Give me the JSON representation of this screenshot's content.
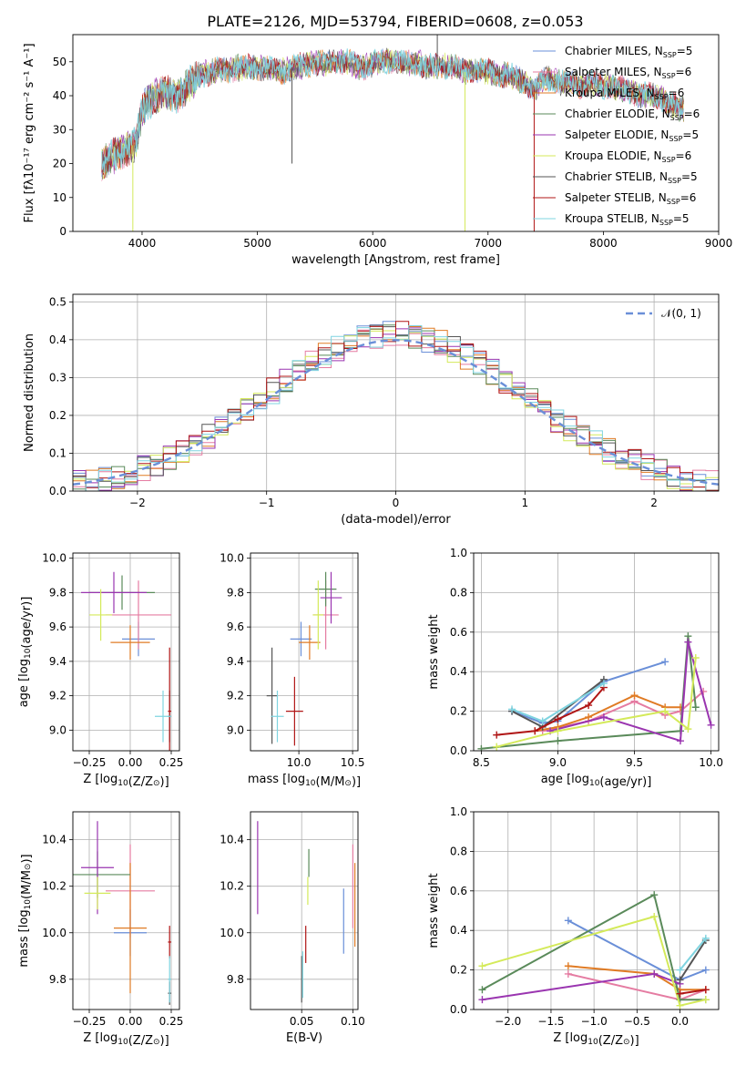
{
  "figure": {
    "title": "PLATE=2126, MJD=53794, FIBERID=0608, z=0.053"
  },
  "models": [
    {
      "label": "Chabrier MILES",
      "nssp": 5,
      "color": "#6a8fd8"
    },
    {
      "label": "Salpeter MILES",
      "nssp": 6,
      "color": "#e57ca2"
    },
    {
      "label": "Kroupa MILES",
      "nssp": 6,
      "color": "#e07b24"
    },
    {
      "label": "Chabrier ELODIE",
      "nssp": 6,
      "color": "#5a8a5a"
    },
    {
      "label": "Salpeter ELODIE",
      "nssp": 5,
      "color": "#9a35b0"
    },
    {
      "label": "Kroupa ELODIE",
      "nssp": 6,
      "color": "#d4ea5a"
    },
    {
      "label": "Chabrier STELIB",
      "nssp": 5,
      "color": "#555555"
    },
    {
      "label": "Salpeter STELIB",
      "nssp": 6,
      "color": "#b01515"
    },
    {
      "label": "Kroupa STELIB",
      "nssp": 5,
      "color": "#7fd4e0"
    }
  ],
  "chart_data": [
    {
      "id": "spectrum",
      "type": "line",
      "xlabel": "wavelength [Angstrom, rest frame]",
      "ylabel": "Flux [fλ10⁻¹⁷ erg cm⁻² s⁻¹ A⁻¹]",
      "xlim": [
        3400,
        9000
      ],
      "ylim": [
        0,
        58
      ],
      "xticks": [
        4000,
        5000,
        6000,
        7000,
        8000,
        9000
      ],
      "yticks": [
        0,
        10,
        20,
        30,
        40,
        50
      ],
      "legend_position": "top-right",
      "continuum": [
        [
          3650,
          20
        ],
        [
          3700,
          21
        ],
        [
          3800,
          23
        ],
        [
          3900,
          25
        ],
        [
          3950,
          26
        ],
        [
          4000,
          36
        ],
        [
          4100,
          40
        ],
        [
          4200,
          41
        ],
        [
          4300,
          40
        ],
        [
          4400,
          43
        ],
        [
          4500,
          46
        ],
        [
          4600,
          47
        ],
        [
          4700,
          47.5
        ],
        [
          4800,
          48
        ],
        [
          4900,
          48.5
        ],
        [
          5000,
          48
        ],
        [
          5100,
          48
        ],
        [
          5200,
          47
        ],
        [
          5300,
          48
        ],
        [
          5400,
          49
        ],
        [
          5500,
          49.5
        ],
        [
          5600,
          49.5
        ],
        [
          5700,
          50
        ],
        [
          5800,
          50
        ],
        [
          5900,
          48
        ],
        [
          6000,
          49.5
        ],
        [
          6100,
          50
        ],
        [
          6200,
          50
        ],
        [
          6300,
          49.5
        ],
        [
          6400,
          49.5
        ],
        [
          6500,
          48.5
        ],
        [
          6600,
          49
        ],
        [
          6700,
          48.5
        ],
        [
          6800,
          47
        ],
        [
          6900,
          47.5
        ],
        [
          7000,
          47
        ],
        [
          7100,
          46
        ],
        [
          7200,
          46
        ],
        [
          7300,
          44
        ],
        [
          7400,
          42
        ],
        [
          7500,
          45
        ],
        [
          7600,
          44
        ],
        [
          7700,
          44
        ],
        [
          7800,
          43
        ],
        [
          7900,
          43.5
        ],
        [
          8000,
          43
        ],
        [
          8100,
          42.5
        ],
        [
          8200,
          41.5
        ],
        [
          8300,
          40.5
        ],
        [
          8400,
          40
        ],
        [
          8500,
          39
        ],
        [
          8600,
          37
        ],
        [
          8700,
          36
        ]
      ],
      "spikes": [
        {
          "x": 3920,
          "y": 0,
          "series": "Kroupa ELODIE"
        },
        {
          "x": 5300,
          "y": 20,
          "series": "Chabrier STELIB"
        },
        {
          "x": 6560,
          "y": 58,
          "series": "Chabrier STELIB"
        },
        {
          "x": 6800,
          "y": 0,
          "series": "Kroupa ELODIE"
        },
        {
          "x": 7400,
          "y": 0,
          "series": "Salpeter STELIB"
        }
      ]
    },
    {
      "id": "residuals",
      "type": "step",
      "xlabel": "(data-model)/error",
      "ylabel": "Normed distribution",
      "xlim": [
        -2.5,
        2.5
      ],
      "ylim": [
        0,
        0.52
      ],
      "xticks": [
        -2,
        -1,
        0,
        1,
        2
      ],
      "yticks": [
        0.0,
        0.1,
        0.2,
        0.3,
        0.4,
        0.5
      ],
      "bin_width": 0.1,
      "reference_curve": {
        "label": "𝒩(0, 1)",
        "mean": 0,
        "sigma": 1
      }
    },
    {
      "id": "age-vs-Z",
      "type": "errorbar",
      "xlabel": "Z [log10(Z/Z⊙)]",
      "ylabel": "age  [log10(age/yr)]",
      "xlim": [
        -0.35,
        0.3
      ],
      "ylim": [
        8.88,
        10.03
      ],
      "xticks": [
        -0.25,
        0.0,
        0.25
      ],
      "yticks": [
        9.0,
        9.2,
        9.4,
        9.6,
        9.8,
        10.0
      ],
      "points": [
        {
          "series": "Chabrier MILES",
          "x": 0.05,
          "xerr": 0.1,
          "y": 9.53,
          "yerr": 0.1
        },
        {
          "series": "Salpeter MILES",
          "x": 0.05,
          "xerr": 0.2,
          "y": 9.67,
          "yerr": 0.2
        },
        {
          "series": "Kroupa MILES",
          "x": 0.0,
          "xerr": 0.12,
          "y": 9.51,
          "yerr": 0.1
        },
        {
          "series": "Chabrier ELODIE",
          "x": -0.05,
          "xerr": 0.2,
          "y": 9.8,
          "yerr": 0.1
        },
        {
          "series": "Salpeter ELODIE",
          "x": -0.1,
          "xerr": 0.2,
          "y": 9.8,
          "yerr": 0.12
        },
        {
          "series": "Kroupa ELODIE",
          "x": -0.18,
          "xerr": 0.07,
          "y": 9.67,
          "yerr": 0.15
        },
        {
          "series": "Chabrier STELIB",
          "x": 0.24,
          "xerr": 0.01,
          "y": 9.08,
          "yerr": 0.15
        },
        {
          "series": "Salpeter STELIB",
          "x": 0.24,
          "xerr": 0.01,
          "y": 9.11,
          "yerr": 0.37
        },
        {
          "series": "Kroupa STELIB",
          "x": 0.2,
          "xerr": 0.05,
          "y": 9.08,
          "yerr": 0.15
        }
      ]
    },
    {
      "id": "age-vs-mass",
      "type": "errorbar",
      "xlabel": "mass [log10(M/M⊙)]",
      "xlim": [
        9.55,
        10.55
      ],
      "ylim": [
        8.88,
        10.03
      ],
      "xticks": [
        10.0,
        10.5
      ],
      "yticks": [
        9.0,
        9.2,
        9.4,
        9.6,
        9.8,
        10.0
      ],
      "points": [
        {
          "series": "Chabrier MILES",
          "x": 10.02,
          "xerr": 0.1,
          "y": 9.53,
          "yerr": 0.1
        },
        {
          "series": "Salpeter MILES",
          "x": 10.25,
          "xerr": 0.12,
          "y": 9.67,
          "yerr": 0.2
        },
        {
          "series": "Kroupa MILES",
          "x": 10.1,
          "xerr": 0.1,
          "y": 9.51,
          "yerr": 0.1
        },
        {
          "series": "Chabrier ELODIE",
          "x": 10.25,
          "xerr": 0.1,
          "y": 9.82,
          "yerr": 0.1
        },
        {
          "series": "Salpeter ELODIE",
          "x": 10.3,
          "xerr": 0.1,
          "y": 9.77,
          "yerr": 0.15
        },
        {
          "series": "Kroupa ELODIE",
          "x": 10.18,
          "xerr": 0.05,
          "y": 9.67,
          "yerr": 0.2
        },
        {
          "series": "Chabrier STELIB",
          "x": 9.75,
          "xerr": 0.05,
          "y": 9.2,
          "yerr": 0.28
        },
        {
          "series": "Salpeter STELIB",
          "x": 9.96,
          "xerr": 0.08,
          "y": 9.11,
          "yerr": 0.2
        },
        {
          "series": "Kroupa STELIB",
          "x": 9.8,
          "xerr": 0.06,
          "y": 9.08,
          "yerr": 0.15
        }
      ]
    },
    {
      "id": "massweight-vs-age",
      "type": "line",
      "xlabel": "age  [log10(age/yr)]",
      "ylabel": "mass weight",
      "xlim": [
        8.45,
        10.05
      ],
      "ylim": [
        0.0,
        1.0
      ],
      "xticks": [
        8.5,
        9.0,
        9.5,
        10.0
      ],
      "yticks": [
        0.0,
        0.2,
        0.4,
        0.6,
        0.8,
        1.0
      ],
      "series": [
        {
          "name": "Chabrier MILES",
          "x": [
            8.7,
            8.9,
            9.0,
            9.3,
            9.7
          ],
          "y": [
            0.2,
            0.14,
            0.15,
            0.35,
            0.45
          ]
        },
        {
          "name": "Salpeter MILES",
          "x": [
            8.9,
            9.2,
            9.5,
            9.7,
            9.8,
            9.95
          ],
          "y": [
            0.1,
            0.15,
            0.25,
            0.18,
            0.2,
            0.3
          ]
        },
        {
          "name": "Kroupa MILES",
          "x": [
            8.85,
            9.0,
            9.2,
            9.5,
            9.7,
            9.8
          ],
          "y": [
            0.1,
            0.12,
            0.17,
            0.28,
            0.22,
            0.22
          ]
        },
        {
          "name": "Chabrier ELODIE",
          "x": [
            8.5,
            9.0,
            9.8,
            9.85,
            9.9
          ],
          "y": [
            0.01,
            0.05,
            0.1,
            0.58,
            0.22
          ]
        },
        {
          "name": "Salpeter ELODIE",
          "x": [
            8.95,
            9.3,
            9.8,
            9.85,
            10.0
          ],
          "y": [
            0.1,
            0.17,
            0.05,
            0.55,
            0.13
          ]
        },
        {
          "name": "Kroupa ELODIE",
          "x": [
            8.6,
            9.0,
            9.7,
            9.85,
            9.9
          ],
          "y": [
            0.02,
            0.1,
            0.2,
            0.11,
            0.47
          ]
        },
        {
          "name": "Chabrier STELIB",
          "x": [
            8.7,
            8.9,
            9.3
          ],
          "y": [
            0.2,
            0.12,
            0.36
          ]
        },
        {
          "name": "Salpeter STELIB",
          "x": [
            8.6,
            8.85,
            9.0,
            9.2,
            9.3
          ],
          "y": [
            0.08,
            0.1,
            0.16,
            0.23,
            0.32
          ]
        },
        {
          "name": "Kroupa STELIB",
          "x": [
            8.7,
            8.9,
            9.3
          ],
          "y": [
            0.21,
            0.15,
            0.34
          ]
        }
      ]
    },
    {
      "id": "mass-vs-Z",
      "type": "errorbar",
      "xlabel": "Z [log10(Z/Z⊙)]",
      "ylabel": "mass [log10(M/M⊙)]",
      "xlim": [
        -0.35,
        0.3
      ],
      "ylim": [
        9.67,
        10.52
      ],
      "xticks": [
        -0.25,
        0.0,
        0.25
      ],
      "yticks": [
        9.8,
        10.0,
        10.2,
        10.4
      ],
      "points": [
        {
          "series": "Chabrier MILES",
          "x": 0.0,
          "xerr": 0.1,
          "y": 10.0,
          "yerr": 0.1
        },
        {
          "series": "Salpeter MILES",
          "x": 0.0,
          "xerr": 0.15,
          "y": 10.18,
          "yerr": 0.2
        },
        {
          "series": "Kroupa MILES",
          "x": 0.0,
          "xerr": 0.1,
          "y": 10.02,
          "yerr": 0.28
        },
        {
          "series": "Chabrier ELODIE",
          "x": -0.2,
          "xerr": 0.2,
          "y": 10.25,
          "yerr": 0.1
        },
        {
          "series": "Salpeter ELODIE",
          "x": -0.2,
          "xerr": 0.1,
          "y": 10.28,
          "yerr": 0.2
        },
        {
          "series": "Kroupa ELODIE",
          "x": -0.2,
          "xerr": 0.08,
          "y": 10.17,
          "yerr": 0.07
        },
        {
          "series": "Chabrier STELIB",
          "x": 0.24,
          "xerr": 0.01,
          "y": 9.74,
          "yerr": 0.05
        },
        {
          "series": "Salpeter STELIB",
          "x": 0.24,
          "xerr": 0.01,
          "y": 9.96,
          "yerr": 0.07
        },
        {
          "series": "Kroupa STELIB",
          "x": 0.24,
          "xerr": 0.01,
          "y": 9.8,
          "yerr": 0.1
        }
      ]
    },
    {
      "id": "mass-vs-ebv",
      "type": "errorbar",
      "xlabel": "E(B-V)",
      "xlim": [
        0.0,
        0.105
      ],
      "ylim": [
        9.67,
        10.52
      ],
      "xticks": [
        0.05,
        0.1
      ],
      "yticks": [
        9.8,
        10.0,
        10.2,
        10.4
      ],
      "points": [
        {
          "series": "Chabrier MILES",
          "x": 0.091,
          "y": 10.05,
          "yerr": 0.14
        },
        {
          "series": "Salpeter MILES",
          "x": 0.1,
          "y": 10.2,
          "yerr": 0.18
        },
        {
          "series": "Kroupa MILES",
          "x": 0.102,
          "y": 10.12,
          "yerr": 0.18
        },
        {
          "series": "Chabrier ELODIE",
          "x": 0.057,
          "y": 10.3,
          "yerr": 0.06
        },
        {
          "series": "Salpeter ELODIE",
          "x": 0.007,
          "y": 10.28,
          "yerr": 0.2
        },
        {
          "series": "Kroupa ELODIE",
          "x": 0.056,
          "y": 10.18,
          "yerr": 0.06
        },
        {
          "series": "Chabrier STELIB",
          "x": 0.05,
          "y": 9.8,
          "yerr": 0.1
        },
        {
          "series": "Salpeter STELIB",
          "x": 0.054,
          "y": 9.95,
          "yerr": 0.08
        },
        {
          "series": "Kroupa STELIB",
          "x": 0.051,
          "y": 9.82,
          "yerr": 0.1
        }
      ]
    },
    {
      "id": "massweight-vs-Z",
      "type": "line",
      "xlabel": "Z [log10(Z/Z⊙)]",
      "ylabel": "mass weight",
      "xlim": [
        -2.4,
        0.45
      ],
      "ylim": [
        0.0,
        1.0
      ],
      "xticks": [
        -2.0,
        -1.5,
        -1.0,
        -0.5,
        0.0
      ],
      "yticks": [
        0.0,
        0.2,
        0.4,
        0.6,
        0.8,
        1.0
      ],
      "series": [
        {
          "name": "Chabrier MILES",
          "x": [
            -1.3,
            0.0,
            0.3
          ],
          "y": [
            0.45,
            0.15,
            0.2
          ]
        },
        {
          "name": "Salpeter MILES",
          "x": [
            -1.3,
            0.0,
            0.3
          ],
          "y": [
            0.18,
            0.05,
            0.1
          ]
        },
        {
          "name": "Kroupa MILES",
          "x": [
            -1.3,
            -0.3,
            0.0,
            0.3
          ],
          "y": [
            0.22,
            0.18,
            0.1,
            0.1
          ]
        },
        {
          "name": "Chabrier ELODIE",
          "x": [
            -2.3,
            -0.3,
            0.0,
            0.3
          ],
          "y": [
            0.1,
            0.58,
            0.05,
            0.05
          ]
        },
        {
          "name": "Salpeter ELODIE",
          "x": [
            -2.3,
            -0.3,
            0.0
          ],
          "y": [
            0.05,
            0.18,
            0.13
          ]
        },
        {
          "name": "Kroupa ELODIE",
          "x": [
            -2.3,
            -0.3,
            0.0,
            0.3
          ],
          "y": [
            0.22,
            0.47,
            0.02,
            0.05
          ]
        },
        {
          "name": "Chabrier STELIB",
          "x": [
            0.0,
            0.3
          ],
          "y": [
            0.15,
            0.35
          ]
        },
        {
          "name": "Salpeter STELIB",
          "x": [
            0.0,
            0.3
          ],
          "y": [
            0.08,
            0.1
          ]
        },
        {
          "name": "Kroupa STELIB",
          "x": [
            0.0,
            0.3
          ],
          "y": [
            0.2,
            0.36
          ]
        }
      ]
    }
  ]
}
